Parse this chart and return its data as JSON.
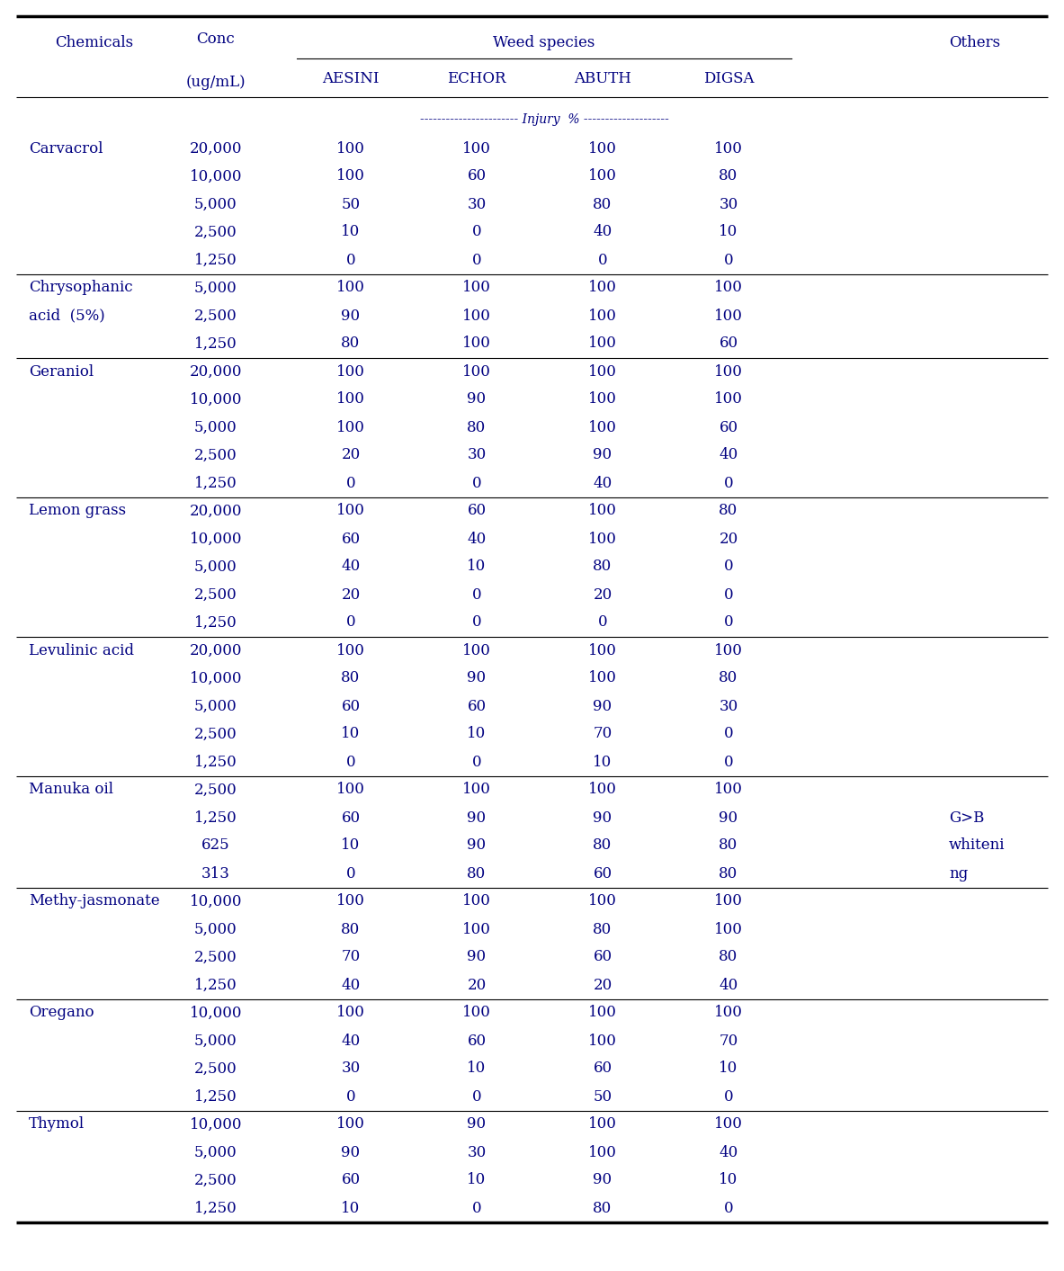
{
  "col_headers_row1": [
    "Chemicals",
    "Conc",
    "Weed species",
    "",
    "",
    "",
    "Others"
  ],
  "col_headers_row2": [
    "",
    "(ug/mL)",
    "AESINI",
    "ECHOR",
    "ABUTH",
    "DIGSA",
    ""
  ],
  "injury_label": "----------------------- Injury  % --------------------",
  "rows": [
    [
      "Carvacrol",
      "20,000",
      "100",
      "100",
      "100",
      "100",
      ""
    ],
    [
      "",
      "10,000",
      "100",
      "60",
      "100",
      "80",
      ""
    ],
    [
      "",
      "5,000",
      "50",
      "30",
      "80",
      "30",
      ""
    ],
    [
      "",
      "2,500",
      "10",
      "0",
      "40",
      "10",
      ""
    ],
    [
      "",
      "1,250",
      "0",
      "0",
      "0",
      "0",
      ""
    ],
    [
      "Chrysophanic",
      "5,000",
      "100",
      "100",
      "100",
      "100",
      ""
    ],
    [
      "acid  (5%)",
      "2,500",
      "90",
      "100",
      "100",
      "100",
      ""
    ],
    [
      "",
      "1,250",
      "80",
      "100",
      "100",
      "60",
      ""
    ],
    [
      "Geraniol",
      "20,000",
      "100",
      "100",
      "100",
      "100",
      ""
    ],
    [
      "",
      "10,000",
      "100",
      "90",
      "100",
      "100",
      ""
    ],
    [
      "",
      "5,000",
      "100",
      "80",
      "100",
      "60",
      ""
    ],
    [
      "",
      "2,500",
      "20",
      "30",
      "90",
      "40",
      ""
    ],
    [
      "",
      "1,250",
      "0",
      "0",
      "40",
      "0",
      ""
    ],
    [
      "Lemon grass",
      "20,000",
      "100",
      "60",
      "100",
      "80",
      ""
    ],
    [
      "",
      "10,000",
      "60",
      "40",
      "100",
      "20",
      ""
    ],
    [
      "",
      "5,000",
      "40",
      "10",
      "80",
      "0",
      ""
    ],
    [
      "",
      "2,500",
      "20",
      "0",
      "20",
      "0",
      ""
    ],
    [
      "",
      "1,250",
      "0",
      "0",
      "0",
      "0",
      ""
    ],
    [
      "Levulinic acid",
      "20,000",
      "100",
      "100",
      "100",
      "100",
      ""
    ],
    [
      "",
      "10,000",
      "80",
      "90",
      "100",
      "80",
      ""
    ],
    [
      "",
      "5,000",
      "60",
      "60",
      "90",
      "30",
      ""
    ],
    [
      "",
      "2,500",
      "10",
      "10",
      "70",
      "0",
      ""
    ],
    [
      "",
      "1,250",
      "0",
      "0",
      "10",
      "0",
      ""
    ],
    [
      "Manuka oil",
      "2,500",
      "100",
      "100",
      "100",
      "100",
      ""
    ],
    [
      "",
      "1,250",
      "60",
      "90",
      "90",
      "90",
      "G>B"
    ],
    [
      "",
      "625",
      "10",
      "90",
      "80",
      "80",
      "whiteni"
    ],
    [
      "",
      "313",
      "0",
      "80",
      "60",
      "80",
      "ng"
    ],
    [
      "Methy-jasmonate",
      "10,000",
      "100",
      "100",
      "100",
      "100",
      ""
    ],
    [
      "",
      "5,000",
      "80",
      "100",
      "80",
      "100",
      ""
    ],
    [
      "",
      "2,500",
      "70",
      "90",
      "60",
      "80",
      ""
    ],
    [
      "",
      "1,250",
      "40",
      "20",
      "20",
      "40",
      ""
    ],
    [
      "Oregano",
      "10,000",
      "100",
      "100",
      "100",
      "100",
      ""
    ],
    [
      "",
      "5,000",
      "40",
      "60",
      "100",
      "70",
      ""
    ],
    [
      "",
      "2,500",
      "30",
      "10",
      "60",
      "10",
      ""
    ],
    [
      "",
      "1,250",
      "0",
      "0",
      "50",
      "0",
      ""
    ],
    [
      "Thymol",
      "10,000",
      "100",
      "90",
      "100",
      "100",
      ""
    ],
    [
      "",
      "5,000",
      "90",
      "30",
      "100",
      "40",
      ""
    ],
    [
      "",
      "2,500",
      "60",
      "10",
      "90",
      "10",
      ""
    ],
    [
      "",
      "1,250",
      "10",
      "0",
      "80",
      "0",
      ""
    ]
  ],
  "group_separator_rows": [
    4,
    7,
    12,
    17,
    22,
    26,
    30,
    34
  ],
  "bg_color": "#ffffff",
  "text_color": "#000080",
  "font_size": 12,
  "header_font_size": 12
}
